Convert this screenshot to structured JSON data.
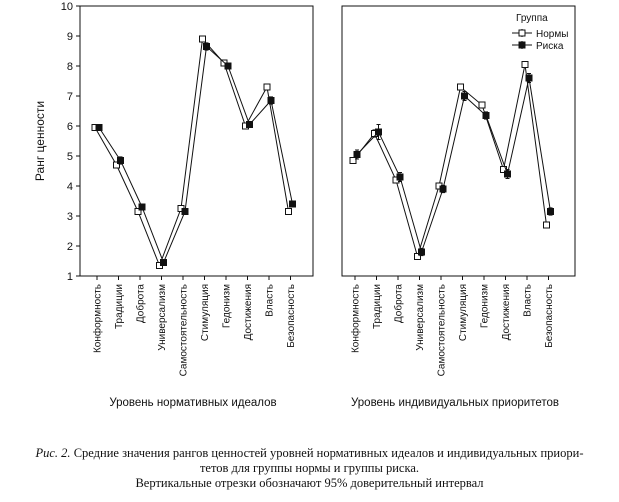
{
  "chart_data": {
    "type": "line",
    "ylabel": "Ранг ценности",
    "ylim": [
      1,
      10
    ],
    "yticks": [
      1,
      2,
      3,
      4,
      5,
      6,
      7,
      8,
      9,
      10
    ],
    "grid": false,
    "legend": {
      "title": "Группа",
      "placement": "top-right",
      "entries": [
        "Нормы",
        "Риска"
      ]
    },
    "panels": [
      {
        "xlabel": "Уровень нормативных идеалов",
        "categories": [
          "Конформность",
          "Традиции",
          "Доброта",
          "Универсализм",
          "Самостоятельность",
          "Стимуляция",
          "Гедонизм",
          "Достижения",
          "Власть",
          "Безопасность"
        ],
        "series": [
          {
            "name": "Нормы",
            "marker": "open-square",
            "values": [
              5.95,
              4.7,
              3.15,
              1.35,
              3.25,
              8.9,
              8.1,
              6.0,
              7.3,
              3.15
            ],
            "ci": [
              0.1,
              0.1,
              0.1,
              0.1,
              0.1,
              0.1,
              0.1,
              0.1,
              0.1,
              0.1
            ]
          },
          {
            "name": "Риска",
            "marker": "filled-square",
            "values": [
              5.95,
              4.85,
              3.3,
              1.45,
              3.15,
              8.65,
              8.0,
              6.05,
              6.85,
              3.4
            ],
            "ci": [
              0.1,
              0.12,
              0.1,
              0.1,
              0.1,
              0.12,
              0.1,
              0.1,
              0.12,
              0.1
            ]
          }
        ]
      },
      {
        "xlabel": "Уровень индивидуальных приоритетов",
        "categories": [
          "Конформность",
          "Традиции",
          "Доброта",
          "Универсализм",
          "Самостоятельность",
          "Стимуляция",
          "Гедонизм",
          "Достижения",
          "Власть",
          "Безопасность"
        ],
        "series": [
          {
            "name": "Нормы",
            "marker": "open-square",
            "values": [
              4.85,
              5.75,
              4.2,
              1.65,
              4.0,
              7.3,
              6.7,
              4.55,
              8.05,
              2.7
            ],
            "ci": [
              0.1,
              0.12,
              0.1,
              0.1,
              0.1,
              0.1,
              0.1,
              0.1,
              0.1,
              0.1
            ]
          },
          {
            "name": "Риска",
            "marker": "filled-square",
            "values": [
              5.05,
              5.8,
              4.3,
              1.8,
              3.9,
              7.0,
              6.35,
              4.4,
              7.6,
              3.15
            ],
            "ci": [
              0.15,
              0.25,
              0.15,
              0.12,
              0.12,
              0.15,
              0.12,
              0.15,
              0.15,
              0.12
            ]
          }
        ]
      }
    ]
  },
  "caption": {
    "label": "Рис. 2.",
    "line1": "Средние значения рангов ценностей уровней нормативных идеалов и индивидуальных приори-",
    "line2": "тетов для группы нормы и группы риска.",
    "line3": "Вертикальные отрезки обозначают 95% доверительный интервал"
  }
}
